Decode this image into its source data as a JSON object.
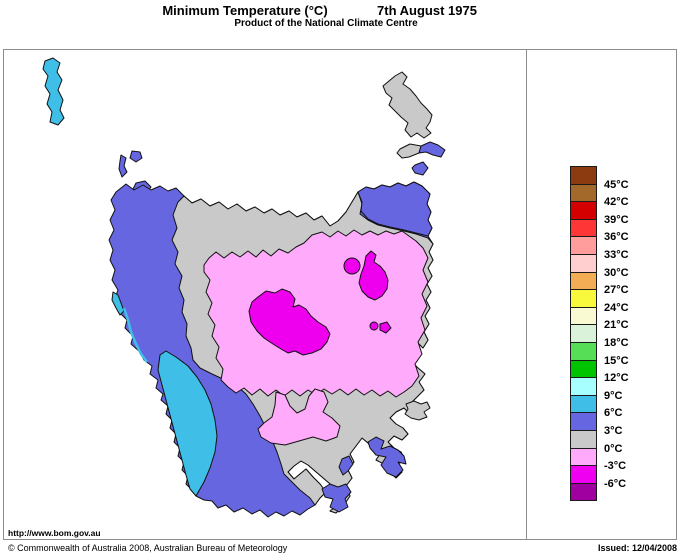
{
  "header": {
    "title": "Minimum Temperature (°C)",
    "date": "7th August 1975",
    "subtitle": "Product of the National Climate Centre"
  },
  "footer": {
    "url": "http://www.bom.gov.au",
    "copyright": "© Commonwealth of Australia 2008, Australian Bureau of Meteorology",
    "issued": "Issued: 12/04/2008"
  },
  "legend": {
    "boxes": [
      "#8C3B10",
      "#A3692B",
      "#D40000",
      "#FF3636",
      "#FF9C9C",
      "#FFCFCF",
      "#F2AD55",
      "#F8F83C",
      "#FAFAD2",
      "#D9F2D9",
      "#57DE57",
      "#00C400",
      "#A8FFFF",
      "#3FBFE8",
      "#6666E0",
      "#C9C9C9",
      "#FFAAFA",
      "#F000F0",
      "#A000A0"
    ],
    "labels": [
      "45°C",
      "42°C",
      "39°C",
      "36°C",
      "33°C",
      "30°C",
      "27°C",
      "24°C",
      "21°C",
      "18°C",
      "15°C",
      "12°C",
      "9°C",
      "6°C",
      "3°C",
      "0°C",
      "-3°C",
      "-6°C"
    ]
  },
  "map_palette": {
    "sea": "#FFFFFF",
    "temp_0_3": "#C9C9C9",
    "temp_3_6": "#6666E0",
    "temp_6_9": "#3FBFE8",
    "temp_0_neg3": "#FFAAFA",
    "temp_neg3_neg6": "#EE00EE",
    "outline": "#111111"
  }
}
